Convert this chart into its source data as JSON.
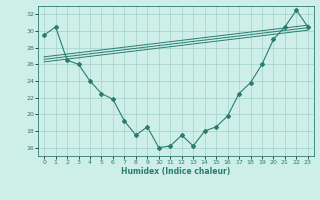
{
  "x": [
    0,
    1,
    2,
    3,
    4,
    5,
    6,
    7,
    8,
    9,
    10,
    11,
    12,
    13,
    14,
    15,
    16,
    17,
    18,
    19,
    20,
    21,
    22,
    23
  ],
  "line1": [
    29.5,
    30.5,
    26.5,
    26.0,
    24.0,
    22.5,
    21.8,
    19.2,
    17.5,
    18.5,
    16.0,
    16.2,
    17.5,
    16.2,
    18.0,
    18.5,
    19.8,
    22.5,
    23.8,
    26.0,
    29.0,
    30.5,
    32.5,
    30.5
  ],
  "reg_lines": [
    [
      26.3,
      30.1
    ],
    [
      26.6,
      30.4
    ],
    [
      26.9,
      30.7
    ]
  ],
  "color": "#2a7d6e",
  "bg_color": "#ceeee8",
  "grid_color": "#aad6cf",
  "xlabel": "Humidex (Indice chaleur)",
  "ylim": [
    15,
    33
  ],
  "xlim": [
    -0.5,
    23.5
  ],
  "yticks": [
    16,
    18,
    20,
    22,
    24,
    26,
    28,
    30,
    32
  ],
  "xticks": [
    0,
    1,
    2,
    3,
    4,
    5,
    6,
    7,
    8,
    9,
    10,
    11,
    12,
    13,
    14,
    15,
    16,
    17,
    18,
    19,
    20,
    21,
    22,
    23
  ]
}
